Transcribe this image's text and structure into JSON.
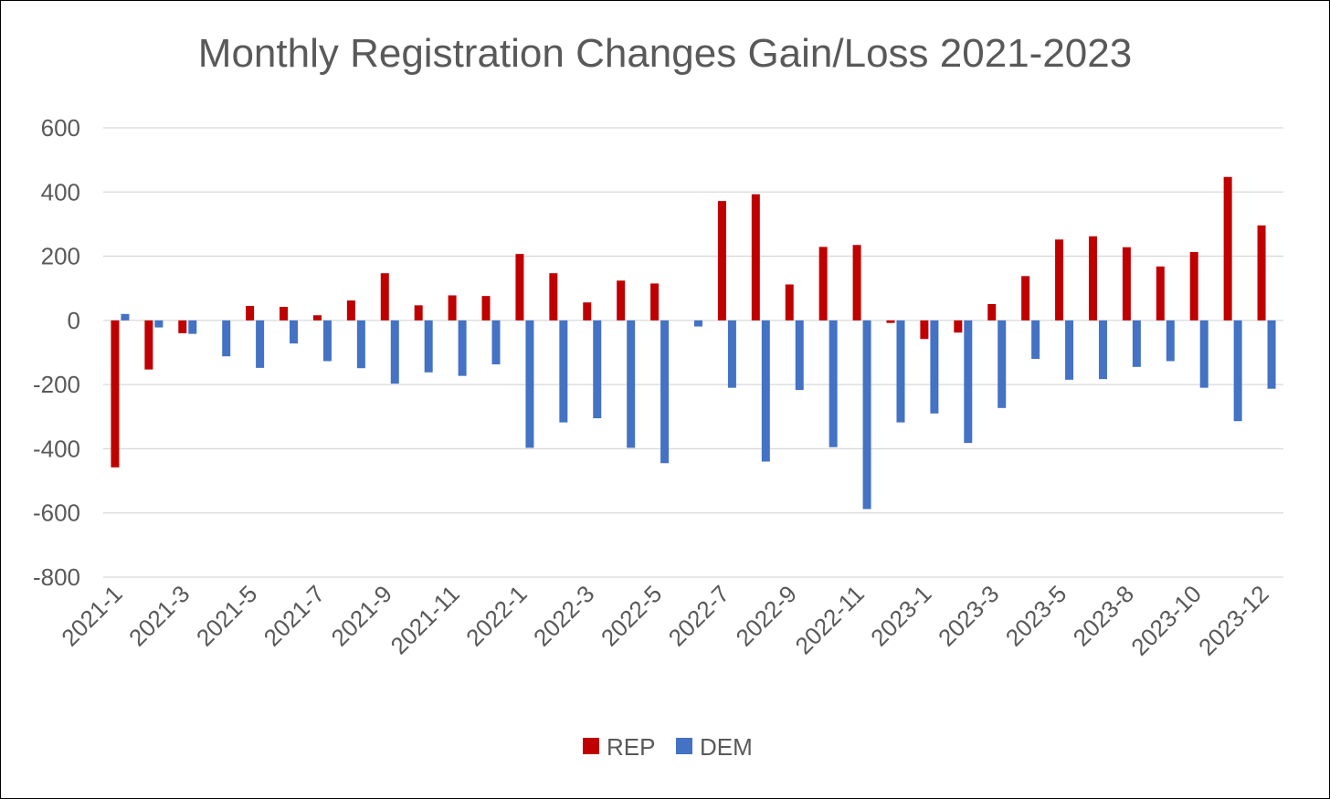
{
  "chart_data": {
    "type": "bar",
    "title": "Monthly Registration Changes Gain/Loss 2021-2023",
    "xlabel": "",
    "ylabel": "",
    "ylim": [
      -800,
      600
    ],
    "y_ticks": [
      600,
      400,
      200,
      0,
      -200,
      -400,
      -600,
      -800
    ],
    "grid": true,
    "legend_position": "bottom",
    "categories": [
      "2021-1",
      "2021-2",
      "2021-3",
      "2021-4",
      "2021-5",
      "2021-6",
      "2021-7",
      "2021-8",
      "2021-9",
      "2021-10",
      "2021-11",
      "2021-12",
      "2022-1",
      "2022-2",
      "2022-3",
      "2022-4",
      "2022-5",
      "2022-6",
      "2022-7",
      "2022-8",
      "2022-9",
      "2022-10",
      "2022-11",
      "2022-12",
      "2023-1",
      "2023-2",
      "2023-3",
      "2023-4",
      "2023-5",
      "2023-7",
      "2023-8",
      "2023-9",
      "2023-10",
      "2023-11",
      "2023-12"
    ],
    "tick_labels": [
      "2021-1",
      "",
      "2021-3",
      "",
      "2021-5",
      "",
      "2021-7",
      "",
      "2021-9",
      "",
      "2021-11",
      "",
      "2022-1",
      "",
      "2022-3",
      "",
      "2022-5",
      "",
      "2022-7",
      "",
      "2022-9",
      "",
      "2022-11",
      "",
      "2023-1",
      "",
      "2023-3",
      "",
      "2023-5",
      "",
      "2023-8",
      "",
      "2023-10",
      "",
      "2023-12"
    ],
    "series": [
      {
        "name": "REP",
        "color": "#c00000",
        "values": [
          -458,
          -153,
          -40,
          0,
          45,
          42,
          16,
          62,
          147,
          47,
          78,
          76,
          207,
          147,
          56,
          124,
          115,
          0,
          372,
          393,
          112,
          229,
          235,
          -8,
          -58,
          -38,
          51,
          138,
          252,
          262,
          228,
          168,
          213,
          447,
          296
        ]
      },
      {
        "name": "DEM",
        "color": "#4472c4",
        "values": [
          20,
          -22,
          -42,
          -112,
          -148,
          -72,
          -127,
          -149,
          -197,
          -162,
          -173,
          -137,
          -397,
          -318,
          -305,
          -397,
          -445,
          -19,
          -210,
          -440,
          -217,
          -395,
          -588,
          -318,
          -290,
          -382,
          -273,
          -120,
          -185,
          -183,
          -145,
          -127,
          -210,
          -314,
          -213
        ]
      }
    ]
  }
}
